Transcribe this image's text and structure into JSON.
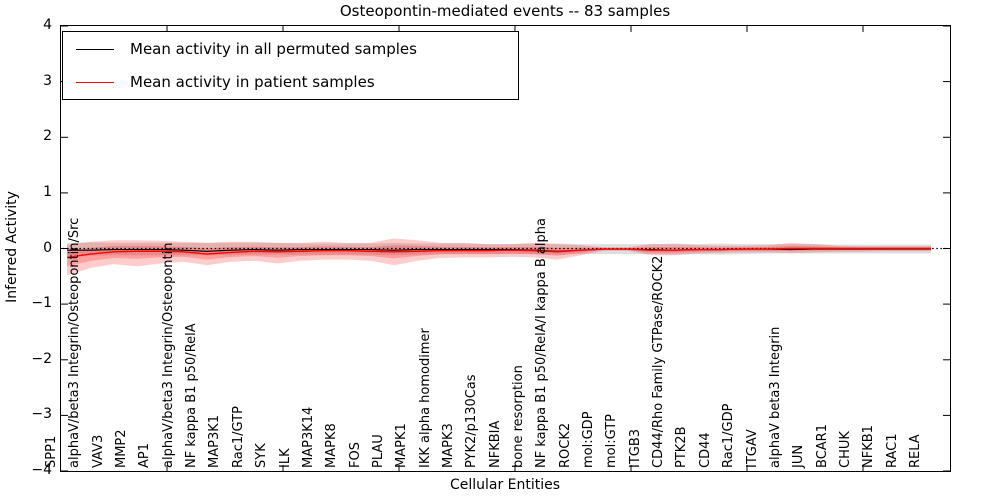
{
  "title": "Osteopontin-mediated events -- 83 samples",
  "xlabel": "Cellular Entities",
  "ylabel": "Inferred Activity",
  "y_tick_labels": [
    "4",
    "3",
    "2",
    "1",
    "0",
    "−1",
    "−2",
    "−3",
    "−4"
  ],
  "y_tick_values": [
    4,
    3,
    2,
    1,
    0,
    -1,
    -2,
    -3,
    -4
  ],
  "colors": {
    "permuted_line": "#000000",
    "patient_line": "#ff0000",
    "patient_band": "#ff0000",
    "permuted_band": "#000000",
    "zero_line": "#000000",
    "spine": "#000000"
  },
  "chart_data": {
    "type": "line",
    "title": "Osteopontin-mediated events -- 83 samples",
    "xlabel": "Cellular Entities",
    "ylabel": "Inferred Activity",
    "ylim": [
      -4,
      4
    ],
    "grid": false,
    "zero_line": 0,
    "legend_position": "upper left",
    "categories": [
      "SPP1",
      "alphaV/beta3 Integrin/Osteopontin/Src",
      "VAV3",
      "MMP2",
      "AP1",
      "alphaV/beta3 Integrin/Osteopontin",
      "NF kappa B1 p50/RelA",
      "MAP3K1",
      "Rac1/GTP",
      "SYK",
      "ILK",
      "MAP3K14",
      "MAPK8",
      "FOS",
      "PLAU",
      "MAPK1",
      "IKK alpha homodimer",
      "MAPK3",
      "PYK2/p130Cas",
      "NFKBIA",
      "bone resorption",
      "NF kappa B1 p50/RelA/I kappa B alpha",
      "ROCK2",
      "mol:GDP",
      "mol:GTP",
      "ITGB3",
      "CD44/Rho Family GTPase/ROCK2",
      "PTK2B",
      "CD44",
      "Rac1/GDP",
      "ITGAV",
      "alphaV beta3 Integrin",
      "JUN",
      "BCAR1",
      "CHUK",
      "NFKB1",
      "RAC1",
      "RELA"
    ],
    "series": [
      {
        "id": "permuted",
        "label": "Mean activity in all permuted samples",
        "color": "#000000",
        "band_alpha": 0.13,
        "mean": [
          -0.03,
          -0.03,
          -0.02,
          -0.02,
          -0.02,
          -0.03,
          -0.05,
          -0.03,
          -0.02,
          -0.03,
          -0.02,
          -0.02,
          -0.02,
          -0.02,
          -0.03,
          -0.02,
          -0.02,
          -0.02,
          -0.02,
          -0.02,
          -0.03,
          -0.05,
          -0.03,
          -0.01,
          -0.01,
          -0.02,
          -0.03,
          -0.02,
          -0.02,
          -0.01,
          -0.01,
          -0.02,
          -0.01,
          -0.01,
          -0.01,
          -0.01,
          -0.01,
          -0.01
        ],
        "band_hi": [
          0.1,
          0.11,
          0.1,
          0.1,
          0.1,
          0.1,
          0.1,
          0.1,
          0.1,
          0.1,
          0.09,
          0.09,
          0.09,
          0.09,
          0.1,
          0.09,
          0.09,
          0.09,
          0.08,
          0.08,
          0.09,
          0.09,
          0.08,
          0.08,
          0.08,
          0.08,
          0.09,
          0.08,
          0.09,
          0.08,
          0.08,
          0.08,
          0.08,
          0.07,
          0.07,
          0.07,
          0.07,
          0.07
        ],
        "band_lo": [
          -0.14,
          -0.13,
          -0.12,
          -0.12,
          -0.12,
          -0.12,
          -0.12,
          -0.12,
          -0.11,
          -0.11,
          -0.11,
          -0.11,
          -0.11,
          -0.11,
          -0.12,
          -0.11,
          -0.1,
          -0.1,
          -0.1,
          -0.1,
          -0.1,
          -0.11,
          -0.1,
          -0.1,
          -0.1,
          -0.1,
          -0.11,
          -0.1,
          -0.11,
          -0.1,
          -0.09,
          -0.09,
          -0.09,
          -0.09,
          -0.09,
          -0.09,
          -0.09,
          -0.09
        ]
      },
      {
        "id": "patient",
        "label": "Mean activity in patient samples",
        "color": "#ff0000",
        "band_alpha": 0.2,
        "mean": [
          -0.16,
          -0.1,
          -0.06,
          -0.05,
          -0.05,
          -0.06,
          -0.1,
          -0.07,
          -0.05,
          -0.06,
          -0.05,
          -0.04,
          -0.04,
          -0.05,
          -0.06,
          -0.05,
          -0.04,
          -0.04,
          -0.04,
          -0.03,
          -0.04,
          -0.06,
          -0.03,
          -0.01,
          -0.01,
          -0.03,
          -0.03,
          -0.02,
          -0.02,
          -0.01,
          -0.01,
          0.0,
          0.0,
          0.0,
          0.0,
          0.0,
          0.0,
          0.0
        ],
        "band_hi": [
          0.07,
          0.12,
          0.15,
          0.15,
          0.14,
          0.12,
          0.1,
          0.12,
          0.12,
          0.1,
          0.1,
          0.12,
          0.1,
          0.1,
          0.18,
          0.15,
          0.1,
          0.1,
          0.08,
          0.08,
          0.1,
          0.08,
          0.06,
          0.02,
          0.02,
          0.08,
          0.08,
          0.06,
          0.05,
          0.05,
          0.06,
          0.1,
          0.08,
          0.05,
          0.04,
          0.04,
          0.04,
          0.04
        ],
        "band_lo": [
          -0.48,
          -0.35,
          -0.28,
          -0.32,
          -0.27,
          -0.24,
          -0.3,
          -0.24,
          -0.22,
          -0.27,
          -0.22,
          -0.2,
          -0.2,
          -0.22,
          -0.3,
          -0.22,
          -0.17,
          -0.16,
          -0.16,
          -0.15,
          -0.16,
          -0.2,
          -0.12,
          -0.04,
          -0.04,
          -0.12,
          -0.12,
          -0.09,
          -0.08,
          -0.07,
          -0.07,
          -0.08,
          -0.07,
          -0.06,
          -0.06,
          -0.05,
          -0.05,
          -0.05
        ]
      }
    ]
  }
}
